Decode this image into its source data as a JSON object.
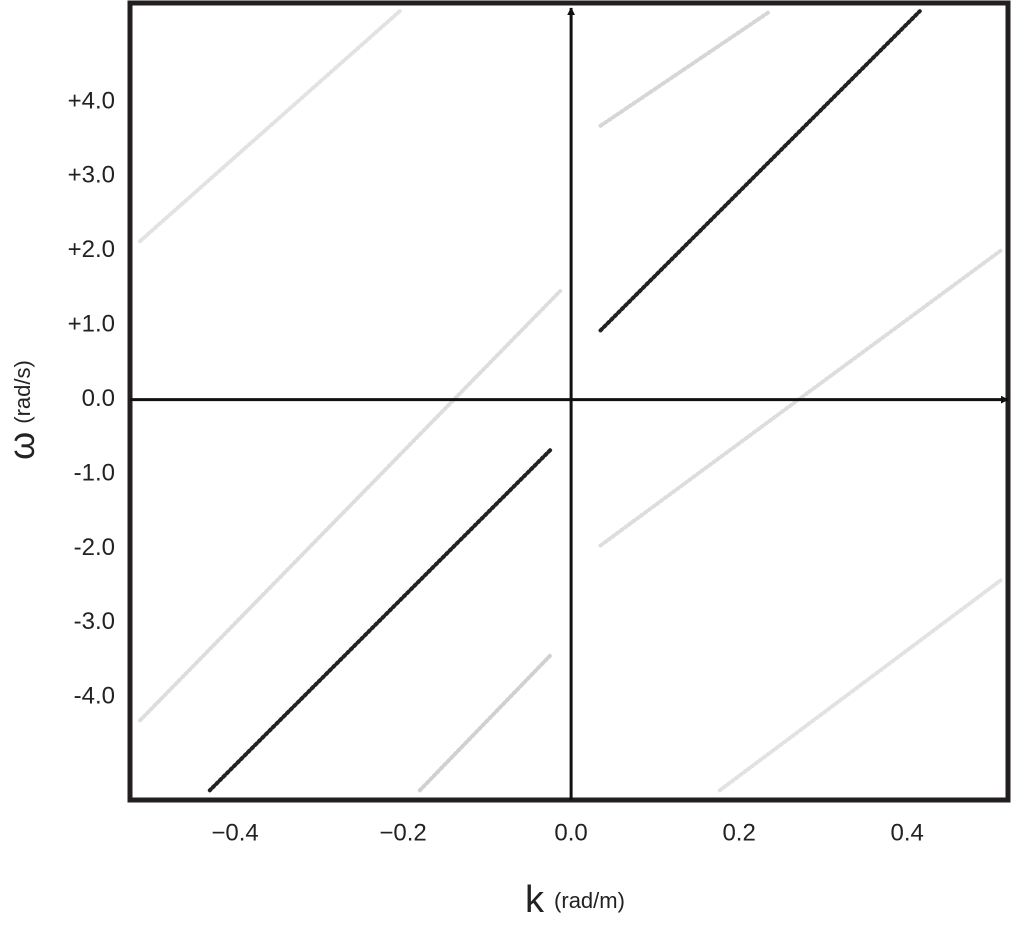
{
  "chart_data": {
    "type": "spectrum",
    "x_label": "k",
    "x_label_unit": "(rad/m)",
    "y_label": "ω",
    "y_label_unit": "(rad/s)",
    "xlim": [
      -0.525,
      0.52
    ],
    "ylim": [
      -5.38,
      5.33
    ],
    "xticks": [
      {
        "value": -0.4,
        "label": "−0.4"
      },
      {
        "value": -0.2,
        "label": "−0.2"
      },
      {
        "value": 0,
        "label": "0.0"
      },
      {
        "value": 0.2,
        "label": "0.2"
      },
      {
        "value": 0.4,
        "label": "0.4"
      }
    ],
    "yticks": [
      {
        "value": 4,
        "label": "+4.0"
      },
      {
        "value": 3,
        "label": "+3.0"
      },
      {
        "value": 2,
        "label": "+2.0"
      },
      {
        "value": 1,
        "label": "+1.0"
      },
      {
        "value": 0,
        "label": "0.0"
      },
      {
        "value": -1,
        "label": "-1.0"
      },
      {
        "value": -2,
        "label": "-2.0"
      },
      {
        "value": -3,
        "label": "-3.0"
      },
      {
        "value": -4,
        "label": "-4.0"
      }
    ],
    "ridges": [
      {
        "color": "#222222",
        "x": [
          0.035,
          0.415
        ],
        "values": [
          0.93,
          5.22
        ]
      },
      {
        "color": "#222222",
        "x": [
          -0.025,
          -0.43
        ],
        "values": [
          -0.68,
          -5.25
        ]
      },
      {
        "color": "#d6d6d6",
        "x": [
          0.035,
          0.237
        ],
        "values": [
          3.68,
          5.22
        ]
      },
      {
        "color": "#dddddd",
        "x": [
          -0.513,
          -0.013
        ],
        "values": [
          -4.31,
          1.46
        ]
      },
      {
        "color": "#d0d0d0",
        "x": [
          -0.18,
          -0.025
        ],
        "values": [
          -5.25,
          -3.44
        ]
      },
      {
        "color": "#dddddd",
        "x": [
          0.035,
          0.511
        ],
        "values": [
          -1.96,
          2.0
        ]
      },
      {
        "color": "#e2e2e2",
        "x": [
          0.177,
          0.511
        ],
        "values": [
          -5.25,
          -2.43
        ]
      },
      {
        "color": "#e2e2e2",
        "x": [
          -0.513,
          -0.204
        ],
        "values": [
          2.13,
          5.22
        ]
      }
    ]
  }
}
